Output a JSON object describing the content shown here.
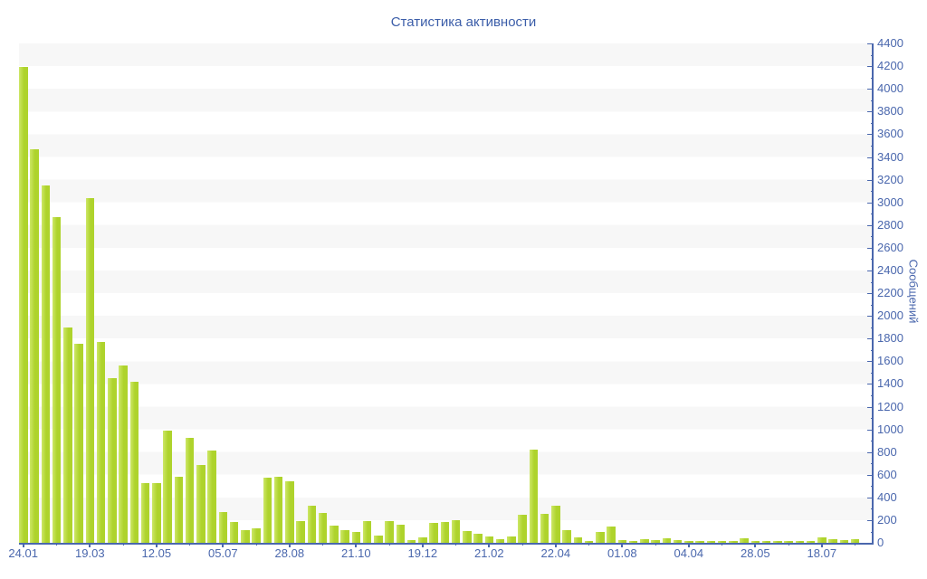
{
  "title": "Статистика активности",
  "colors": {
    "bar": "#aed32c",
    "bar_highlight": "#cde767",
    "axis": "#4a67ad",
    "tick_text": "#4a67ad",
    "title_text": "#3c5ea9",
    "stripe": "#f7f7f7",
    "background": "#ffffff"
  },
  "chart_data": {
    "type": "bar",
    "title": "Статистика активности",
    "ylabel": "Сообщений",
    "xlabel": "",
    "ylim": [
      0,
      4400
    ],
    "y_major_step": 200,
    "y_minor_step": 100,
    "grid": "alternating horizontal stripes every 200 units",
    "legend": "none",
    "x_tick_labels": [
      "24.01",
      "19.03",
      "12.05",
      "05.07",
      "28.08",
      "21.10",
      "19.12",
      "21.02",
      "22.04",
      "01.08",
      "04.04",
      "28.05",
      "18.07"
    ],
    "x_tick_bar_indices": [
      0,
      6,
      12,
      18,
      24,
      30,
      36,
      42,
      48,
      54,
      60,
      66,
      72
    ],
    "x_minor_tick_bar_indices": [
      3,
      9,
      15,
      21,
      27,
      33,
      39,
      45,
      51,
      57,
      63,
      69,
      75
    ],
    "values": [
      4190,
      3470,
      3150,
      2870,
      1895,
      1755,
      3040,
      1770,
      1450,
      1560,
      1420,
      530,
      525,
      990,
      585,
      925,
      685,
      815,
      270,
      180,
      115,
      130,
      575,
      580,
      540,
      195,
      325,
      265,
      150,
      115,
      100,
      190,
      65,
      195,
      160,
      25,
      50,
      175,
      180,
      200,
      105,
      80,
      55,
      35,
      60,
      250,
      825,
      255,
      330,
      115,
      50,
      20,
      100,
      140,
      25,
      20,
      35,
      25,
      40,
      25,
      20,
      20,
      20,
      15,
      20,
      40,
      20,
      15,
      15,
      15,
      15,
      15,
      45,
      30,
      25,
      30
    ]
  }
}
